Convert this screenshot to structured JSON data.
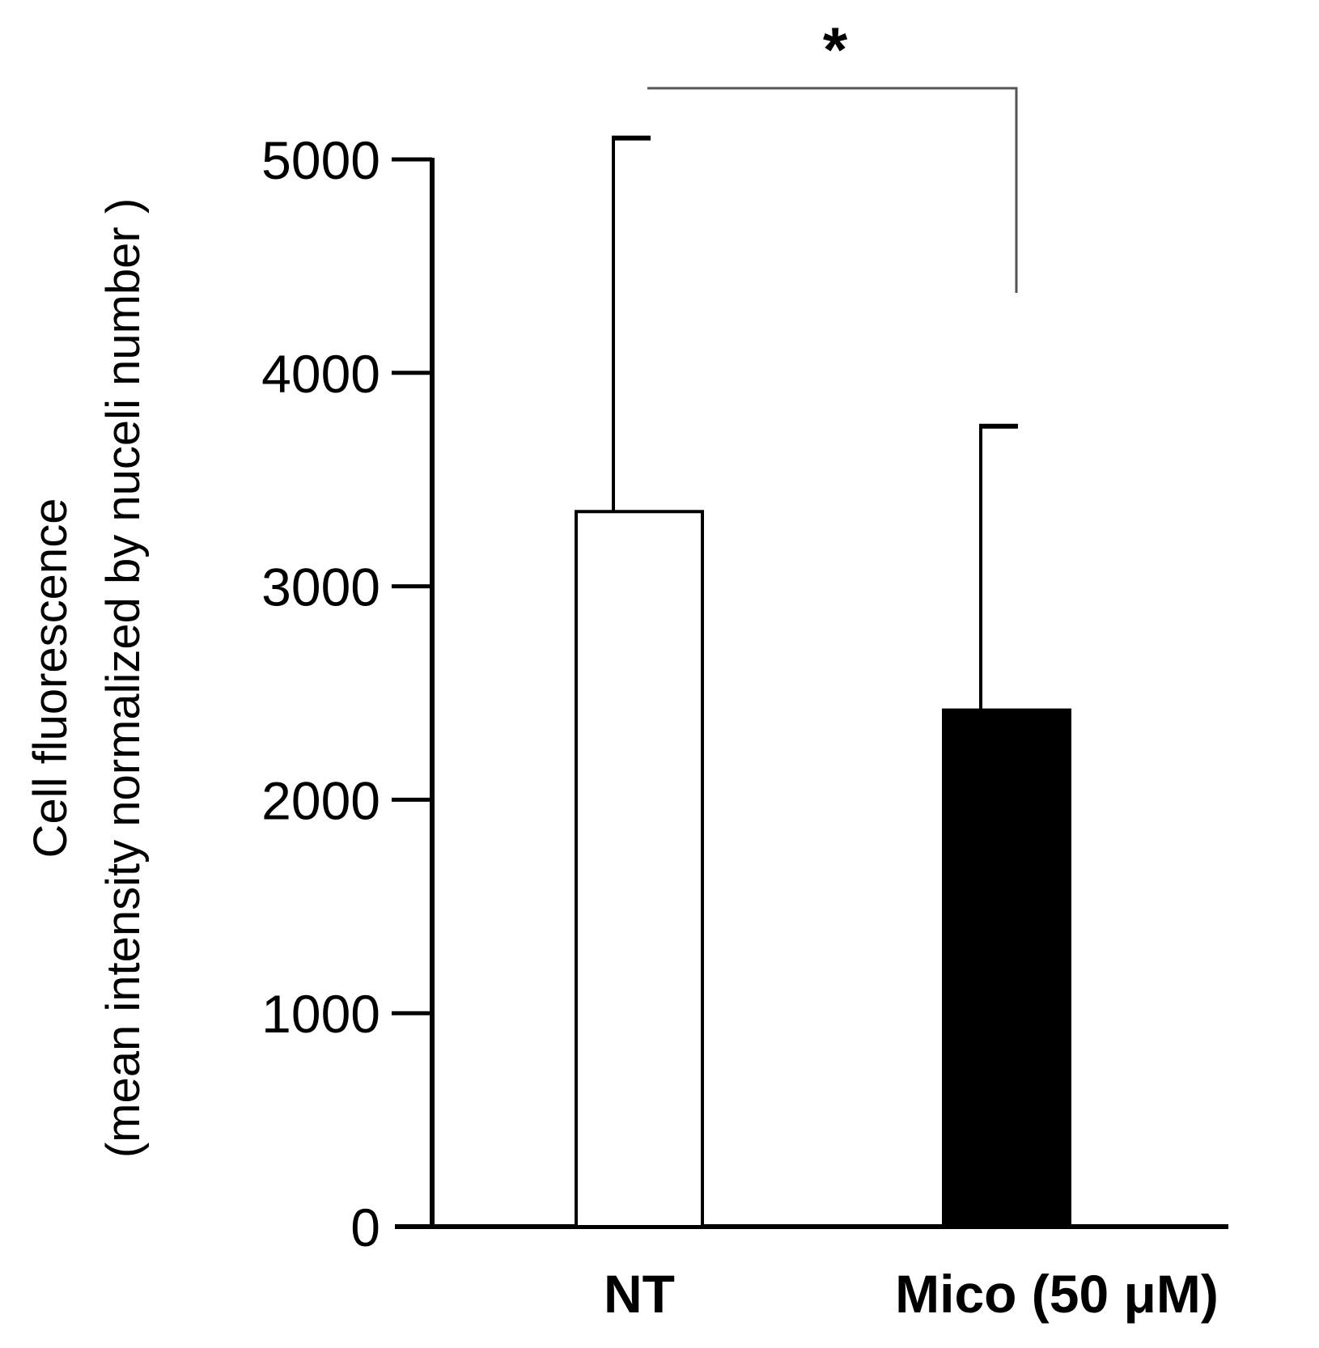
{
  "chart_data": {
    "type": "bar",
    "title": "",
    "xlabel": "",
    "ylabel": {
      "line1": "Cell fluorescence",
      "line2": "(mean intensity normalized by nuceli number )"
    },
    "categories": [
      "NT",
      "Mico (50 μM)"
    ],
    "values": [
      3350,
      2420
    ],
    "error_upper": [
      5100,
      3750
    ],
    "bar_fill": [
      "#ffffff",
      "#000000"
    ],
    "bar_stroke": "#000000",
    "ylim": [
      0,
      5000
    ],
    "yticks": [
      0,
      1000,
      2000,
      3000,
      4000,
      5000
    ],
    "ytick_labels": [
      "0",
      "1000",
      "2000",
      "3000",
      "4000",
      "5000"
    ],
    "significance": {
      "between": [
        "NT",
        "Mico (50 μM)"
      ],
      "label": "*"
    },
    "grid": false,
    "legend": "none"
  },
  "colors": {
    "axis": "#000000",
    "bracket": "#555555",
    "background": "#ffffff"
  }
}
